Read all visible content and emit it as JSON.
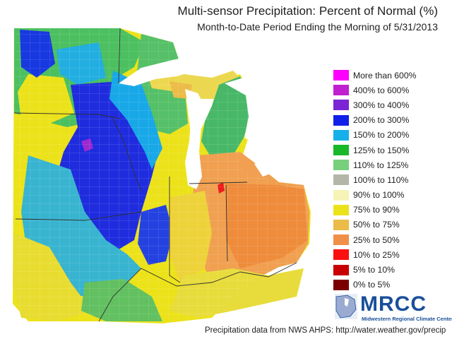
{
  "header": {
    "title": "Multi-sensor Precipitation: Percent of Normal (%)",
    "subtitle": "Month-to-Date Period Ending the Morning of 5/31/2013"
  },
  "legend": {
    "items": [
      {
        "label": "More than 600%",
        "color": "#ff00ff"
      },
      {
        "label": "400% to 600%",
        "color": "#c020d0"
      },
      {
        "label": "300% to 400%",
        "color": "#7a24d6"
      },
      {
        "label": "200% to 300%",
        "color": "#1020e8"
      },
      {
        "label": "150% to 200%",
        "color": "#16b0e8"
      },
      {
        "label": "125% to 150%",
        "color": "#18b828"
      },
      {
        "label": "110% to 125%",
        "color": "#78d07c"
      },
      {
        "label": "100% to 110%",
        "color": "#b4b6a8"
      },
      {
        "label": "90% to 100%",
        "color": "#f6f4b6"
      },
      {
        "label": "75% to 90%",
        "color": "#ece21a"
      },
      {
        "label": "50% to 75%",
        "color": "#ecbc48"
      },
      {
        "label": "25% to 50%",
        "color": "#f09048"
      },
      {
        "label": "10% to 25%",
        "color": "#fa1010"
      },
      {
        "label": "5% to 10%",
        "color": "#c80000"
      },
      {
        "label": "0% to 5%",
        "color": "#7a0000"
      }
    ]
  },
  "logo": {
    "text": "MRCC",
    "subtext": "Midwestern Regional Climate Center"
  },
  "footer": {
    "text": "Precipitation data from NWS AHPS:  http://water.weather.gov/precip"
  }
}
